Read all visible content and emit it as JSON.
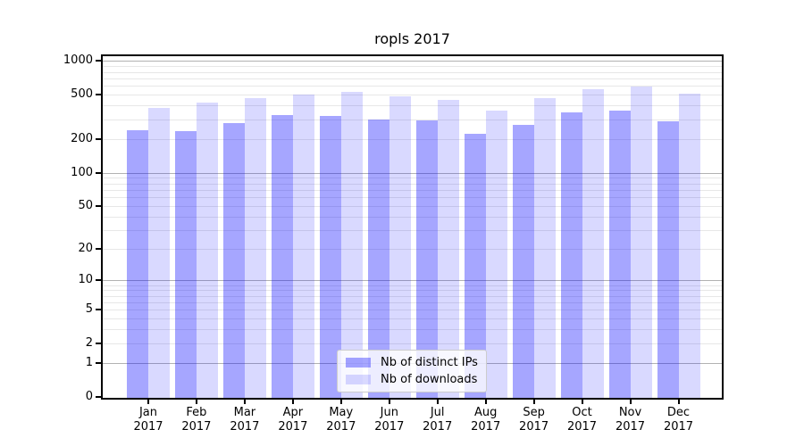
{
  "title": "ropls 2017",
  "chart_data": {
    "type": "bar",
    "title": "ropls 2017",
    "yscale": "log(1+x)",
    "ylim": [
      0,
      1150
    ],
    "grid": true,
    "legend_position": "lower center",
    "categories": [
      "Jan",
      "Feb",
      "Mar",
      "Apr",
      "May",
      "Jun",
      "Jul",
      "Aug",
      "Sep",
      "Oct",
      "Nov",
      "Dec"
    ],
    "category_year": "2017",
    "yticks": [
      1000,
      500,
      200,
      100,
      50,
      20,
      10,
      5,
      2,
      1,
      0
    ],
    "series": [
      {
        "name": "Nb of distinct IPs",
        "color": "#a6a6f7",
        "fill": "rgba(0,0,255,0.35)",
        "values": [
          240,
          235,
          280,
          330,
          320,
          300,
          295,
          225,
          270,
          350,
          360,
          290
        ]
      },
      {
        "name": "Nb of downloads",
        "color": "#d9d9fb",
        "fill": "rgba(0,0,255,0.15)",
        "values": [
          380,
          425,
          465,
          500,
          530,
          485,
          450,
          360,
          465,
          565,
          595,
          510
        ]
      }
    ]
  }
}
